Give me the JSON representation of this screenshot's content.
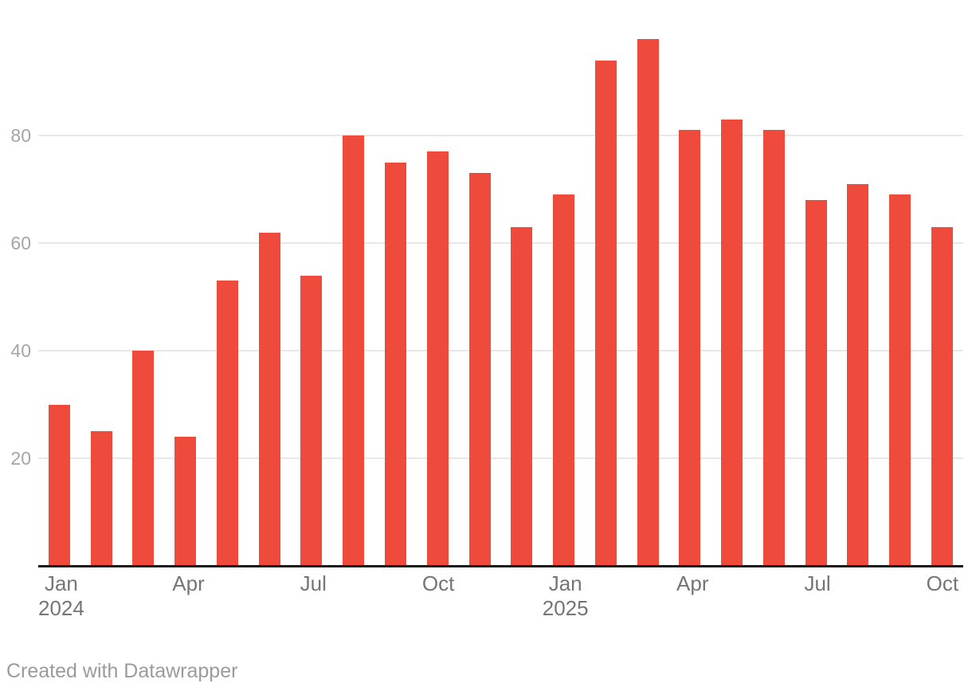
{
  "chart_data": {
    "type": "bar",
    "title": "",
    "categories": [
      "Jan 2024",
      "Feb 2024",
      "Mar 2024",
      "Apr 2024",
      "May 2024",
      "Jun 2024",
      "Jul 2024",
      "Aug 2024",
      "Sep 2024",
      "Oct 2024",
      "Nov 2024",
      "Dec 2024",
      "Jan 2025",
      "Feb 2025",
      "Mar 2025",
      "Apr 2025",
      "May 2025",
      "Jun 2025",
      "Jul 2025",
      "Aug 2025",
      "Sep 2025",
      "Oct 2025"
    ],
    "values": [
      30,
      25,
      40,
      24,
      53,
      62,
      54,
      80,
      75,
      77,
      73,
      63,
      69,
      94,
      98,
      81,
      83,
      81,
      68,
      71,
      69,
      63
    ],
    "xlabel": "",
    "ylabel": "",
    "ylim": [
      0,
      100
    ],
    "yticks": [
      20,
      40,
      60,
      80
    ],
    "x_ticks": [
      {
        "index": 0,
        "month": "Jan",
        "year": "2024"
      },
      {
        "index": 3,
        "month": "Apr",
        "year": ""
      },
      {
        "index": 6,
        "month": "Jul",
        "year": ""
      },
      {
        "index": 9,
        "month": "Oct",
        "year": ""
      },
      {
        "index": 12,
        "month": "Jan",
        "year": "2025"
      },
      {
        "index": 15,
        "month": "Apr",
        "year": ""
      },
      {
        "index": 18,
        "month": "Jul",
        "year": ""
      },
      {
        "index": 21,
        "month": "Oct",
        "year": ""
      }
    ],
    "grid": true,
    "legend": "none",
    "footer": "Created with Datawrapper",
    "colors": {
      "bar": "#ee4b3c",
      "grid": "#e8e8e8",
      "axis_line": "#1a1a1a",
      "y_tick_label": "#a5a5a5",
      "x_tick_label": "#757575",
      "footer_text": "#9b9b9b",
      "background": "#ffffff"
    }
  }
}
